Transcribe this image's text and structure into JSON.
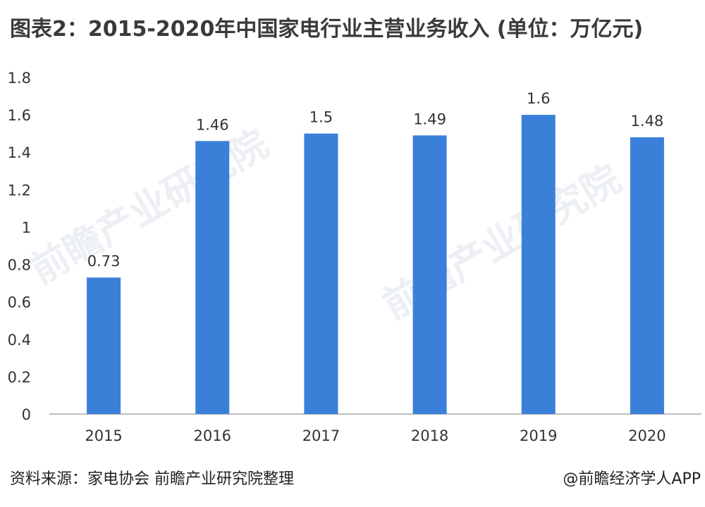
{
  "title": "图表2：2015-2020年中国家电行业主营业务收入 (单位：万亿元)",
  "source": "资料来源：家电协会 前瞻产业研究院整理",
  "credit": "@前瞻经济学人APP",
  "watermark": "前瞻产业研究院",
  "colors": {
    "bar": "#3a80d9",
    "axis": "#bfbfbf",
    "text": "#333333"
  },
  "chart_data": {
    "type": "bar",
    "categories": [
      "2015",
      "2016",
      "2017",
      "2018",
      "2019",
      "2020"
    ],
    "values": [
      0.73,
      1.46,
      1.5,
      1.49,
      1.6,
      1.48
    ],
    "data_labels": [
      "0.73",
      "1.46",
      "1.5",
      "1.49",
      "1.6",
      "1.48"
    ],
    "y_ticks": [
      "0",
      "0.2",
      "0.4",
      "0.6",
      "0.8",
      "1",
      "1.2",
      "1.4",
      "1.6",
      "1.8"
    ],
    "ylim": [
      0,
      1.8
    ],
    "grid": false,
    "legend": "none"
  }
}
